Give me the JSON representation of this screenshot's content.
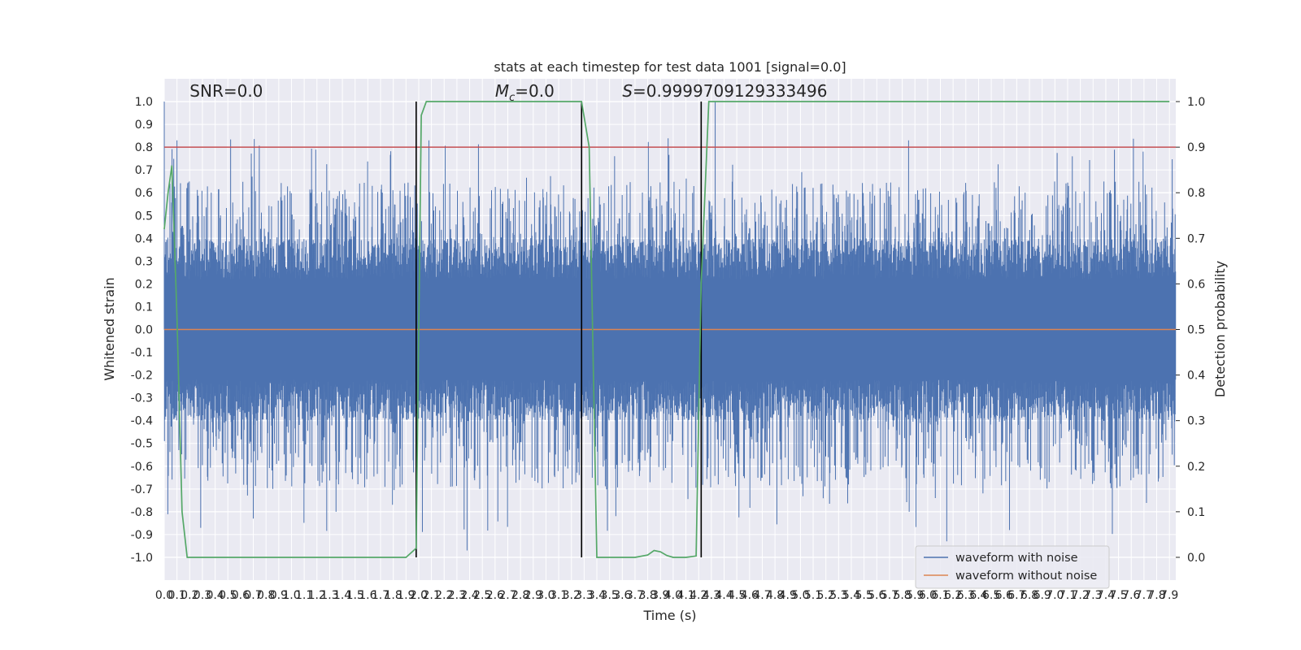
{
  "chart_data": {
    "type": "line",
    "title": "stats at each timestep for test data 1001 [signal=0.0]",
    "xlabel": "Time (s)",
    "ylabel": "Whitened strain",
    "y2label": "Detection probability",
    "xlim": [
      0.0,
      7.95
    ],
    "ylim": [
      -1.1,
      1.1
    ],
    "y2lim": [
      -0.05,
      1.05
    ],
    "x_ticks": [
      0.0,
      0.1,
      0.2,
      0.3,
      0.4,
      0.5,
      0.6,
      0.7,
      0.8,
      0.9,
      1.0,
      1.1,
      1.2,
      1.3,
      1.4,
      1.5,
      1.6,
      1.7,
      1.8,
      1.9,
      2.0,
      2.1,
      2.2,
      2.3,
      2.4,
      2.5,
      2.6,
      2.7,
      2.8,
      2.9,
      3.0,
      3.1,
      3.2,
      3.3,
      3.4,
      3.5,
      3.6,
      3.7,
      3.8,
      3.9,
      4.0,
      4.1,
      4.2,
      4.3,
      4.4,
      4.5,
      4.6,
      4.7,
      4.8,
      4.9,
      5.0,
      5.1,
      5.2,
      5.3,
      5.4,
      5.5,
      5.6,
      5.7,
      5.8,
      5.9,
      6.0,
      6.1,
      6.2,
      6.3,
      6.4,
      6.5,
      6.6,
      6.7,
      6.8,
      6.9,
      7.0,
      7.1,
      7.2,
      7.3,
      7.4,
      7.5,
      7.6,
      7.7,
      7.8,
      7.9
    ],
    "y_ticks": [
      1.0,
      0.9,
      0.8,
      0.7,
      0.6,
      0.5,
      0.4,
      0.3,
      0.2,
      0.1,
      0.0,
      -0.1,
      -0.2,
      -0.3,
      -0.4,
      -0.5,
      -0.6,
      -0.7,
      -0.8,
      -0.9,
      -1.0
    ],
    "y2_ticks": [
      0.0,
      0.1,
      0.2,
      0.3,
      0.4,
      0.5,
      0.6,
      0.7,
      0.8,
      0.9,
      1.0
    ],
    "grid": true,
    "legend_position": "lower-right",
    "annotations": [
      {
        "id": "snr",
        "x": 0.2,
        "text": "SNR=0.0"
      },
      {
        "id": "mc",
        "x": 2.6,
        "text": "=0.0",
        "symbol": "M",
        "subscript": "c"
      },
      {
        "id": "s",
        "x": 3.6,
        "text": "=0.9999709129333496",
        "symbol": "S"
      }
    ],
    "threshold": {
      "y2": 0.9,
      "color": "#c44e52"
    },
    "vertical_markers": [
      1.98,
      3.28,
      4.22
    ],
    "series": [
      {
        "name": "waveform with noise",
        "color": "#4c72b0",
        "kind": "noise",
        "band": 0.4,
        "spike_max": 1.0,
        "spike_min": -0.97
      },
      {
        "name": "waveform without noise",
        "color": "#dd8452",
        "kind": "constant",
        "value": 0.0
      },
      {
        "name": "detection probability",
        "color": "#55a868",
        "axis": "y2",
        "x": [
          0.0,
          0.03,
          0.06,
          0.1,
          0.14,
          0.18,
          0.22,
          0.3,
          0.5,
          1.0,
          1.5,
          1.9,
          1.98,
          2.02,
          2.06,
          2.13,
          2.5,
          3.0,
          3.28,
          3.34,
          3.4,
          3.46,
          3.55,
          3.7,
          3.8,
          3.85,
          3.9,
          3.95,
          4.0,
          4.1,
          4.18,
          4.22,
          4.28,
          4.34,
          4.5,
          5.0,
          6.0,
          7.0,
          7.9
        ],
        "y": [
          0.72,
          0.8,
          0.86,
          0.53,
          0.1,
          0.0,
          0.0,
          0.0,
          0.0,
          0.0,
          0.0,
          0.0,
          0.02,
          0.97,
          1.0,
          1.0,
          1.0,
          1.0,
          1.0,
          0.9,
          0.0,
          0.0,
          0.0,
          0.0,
          0.005,
          0.015,
          0.012,
          0.004,
          0.0,
          0.0,
          0.003,
          0.6,
          1.0,
          1.0,
          1.0,
          1.0,
          1.0,
          1.0,
          1.0
        ]
      }
    ]
  }
}
